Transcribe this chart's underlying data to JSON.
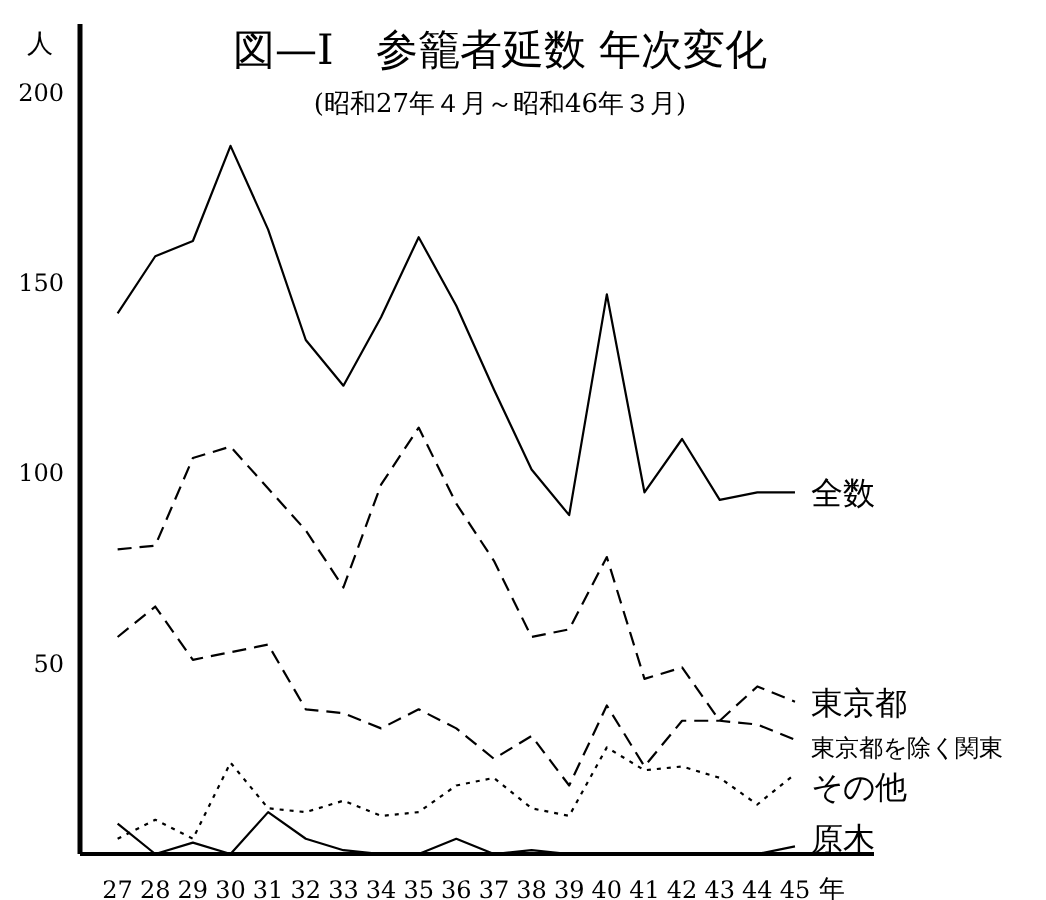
{
  "chart_data": {
    "type": "line",
    "title": "図—I　参籠者延数 年次変化",
    "subtitle": "(昭和27年４月～昭和46年３月)",
    "ylabel": "人",
    "xlabel": "年",
    "categories": [
      "27",
      "28",
      "29",
      "30",
      "31",
      "32",
      "33",
      "34",
      "35",
      "36",
      "37",
      "38",
      "39",
      "40",
      "41",
      "42",
      "43",
      "44",
      "45"
    ],
    "ylim": [
      0,
      218
    ],
    "yticks": [
      50,
      100,
      150,
      200
    ],
    "grid": false,
    "legend": false,
    "marker": "none",
    "series": [
      {
        "name": "全数",
        "color": "#000000",
        "line_style": "solid",
        "values": [
          142,
          157,
          161,
          186,
          164,
          135,
          123,
          141,
          162,
          144,
          122,
          101,
          89,
          147,
          95,
          109,
          93,
          95,
          95
        ]
      },
      {
        "name": "東京都",
        "color": "#000000",
        "line_style": "dashed",
        "values": [
          80,
          81,
          104,
          107,
          96,
          85,
          70,
          97,
          112,
          92,
          77,
          57,
          59,
          78,
          46,
          49,
          35,
          44,
          40
        ]
      },
      {
        "name": "東京都を除く関東",
        "color": "#000000",
        "line_style": "dashed",
        "values": [
          57,
          65,
          51,
          53,
          55,
          38,
          37,
          33,
          38,
          33,
          25,
          31,
          18,
          39,
          23,
          35,
          35,
          34,
          30
        ]
      },
      {
        "name": "その他",
        "color": "#000000",
        "line_style": "dotted",
        "values": [
          4,
          9,
          4,
          24,
          12,
          11,
          14,
          10,
          11,
          18,
          20,
          12,
          10,
          28,
          22,
          23,
          20,
          13,
          21
        ]
      },
      {
        "name": "原木",
        "color": "#000000",
        "line_style": "solid",
        "values": [
          8,
          0,
          3,
          0,
          11,
          4,
          1,
          0,
          0,
          4,
          0,
          1,
          0,
          0,
          0,
          0,
          0,
          0,
          2
        ]
      }
    ]
  }
}
